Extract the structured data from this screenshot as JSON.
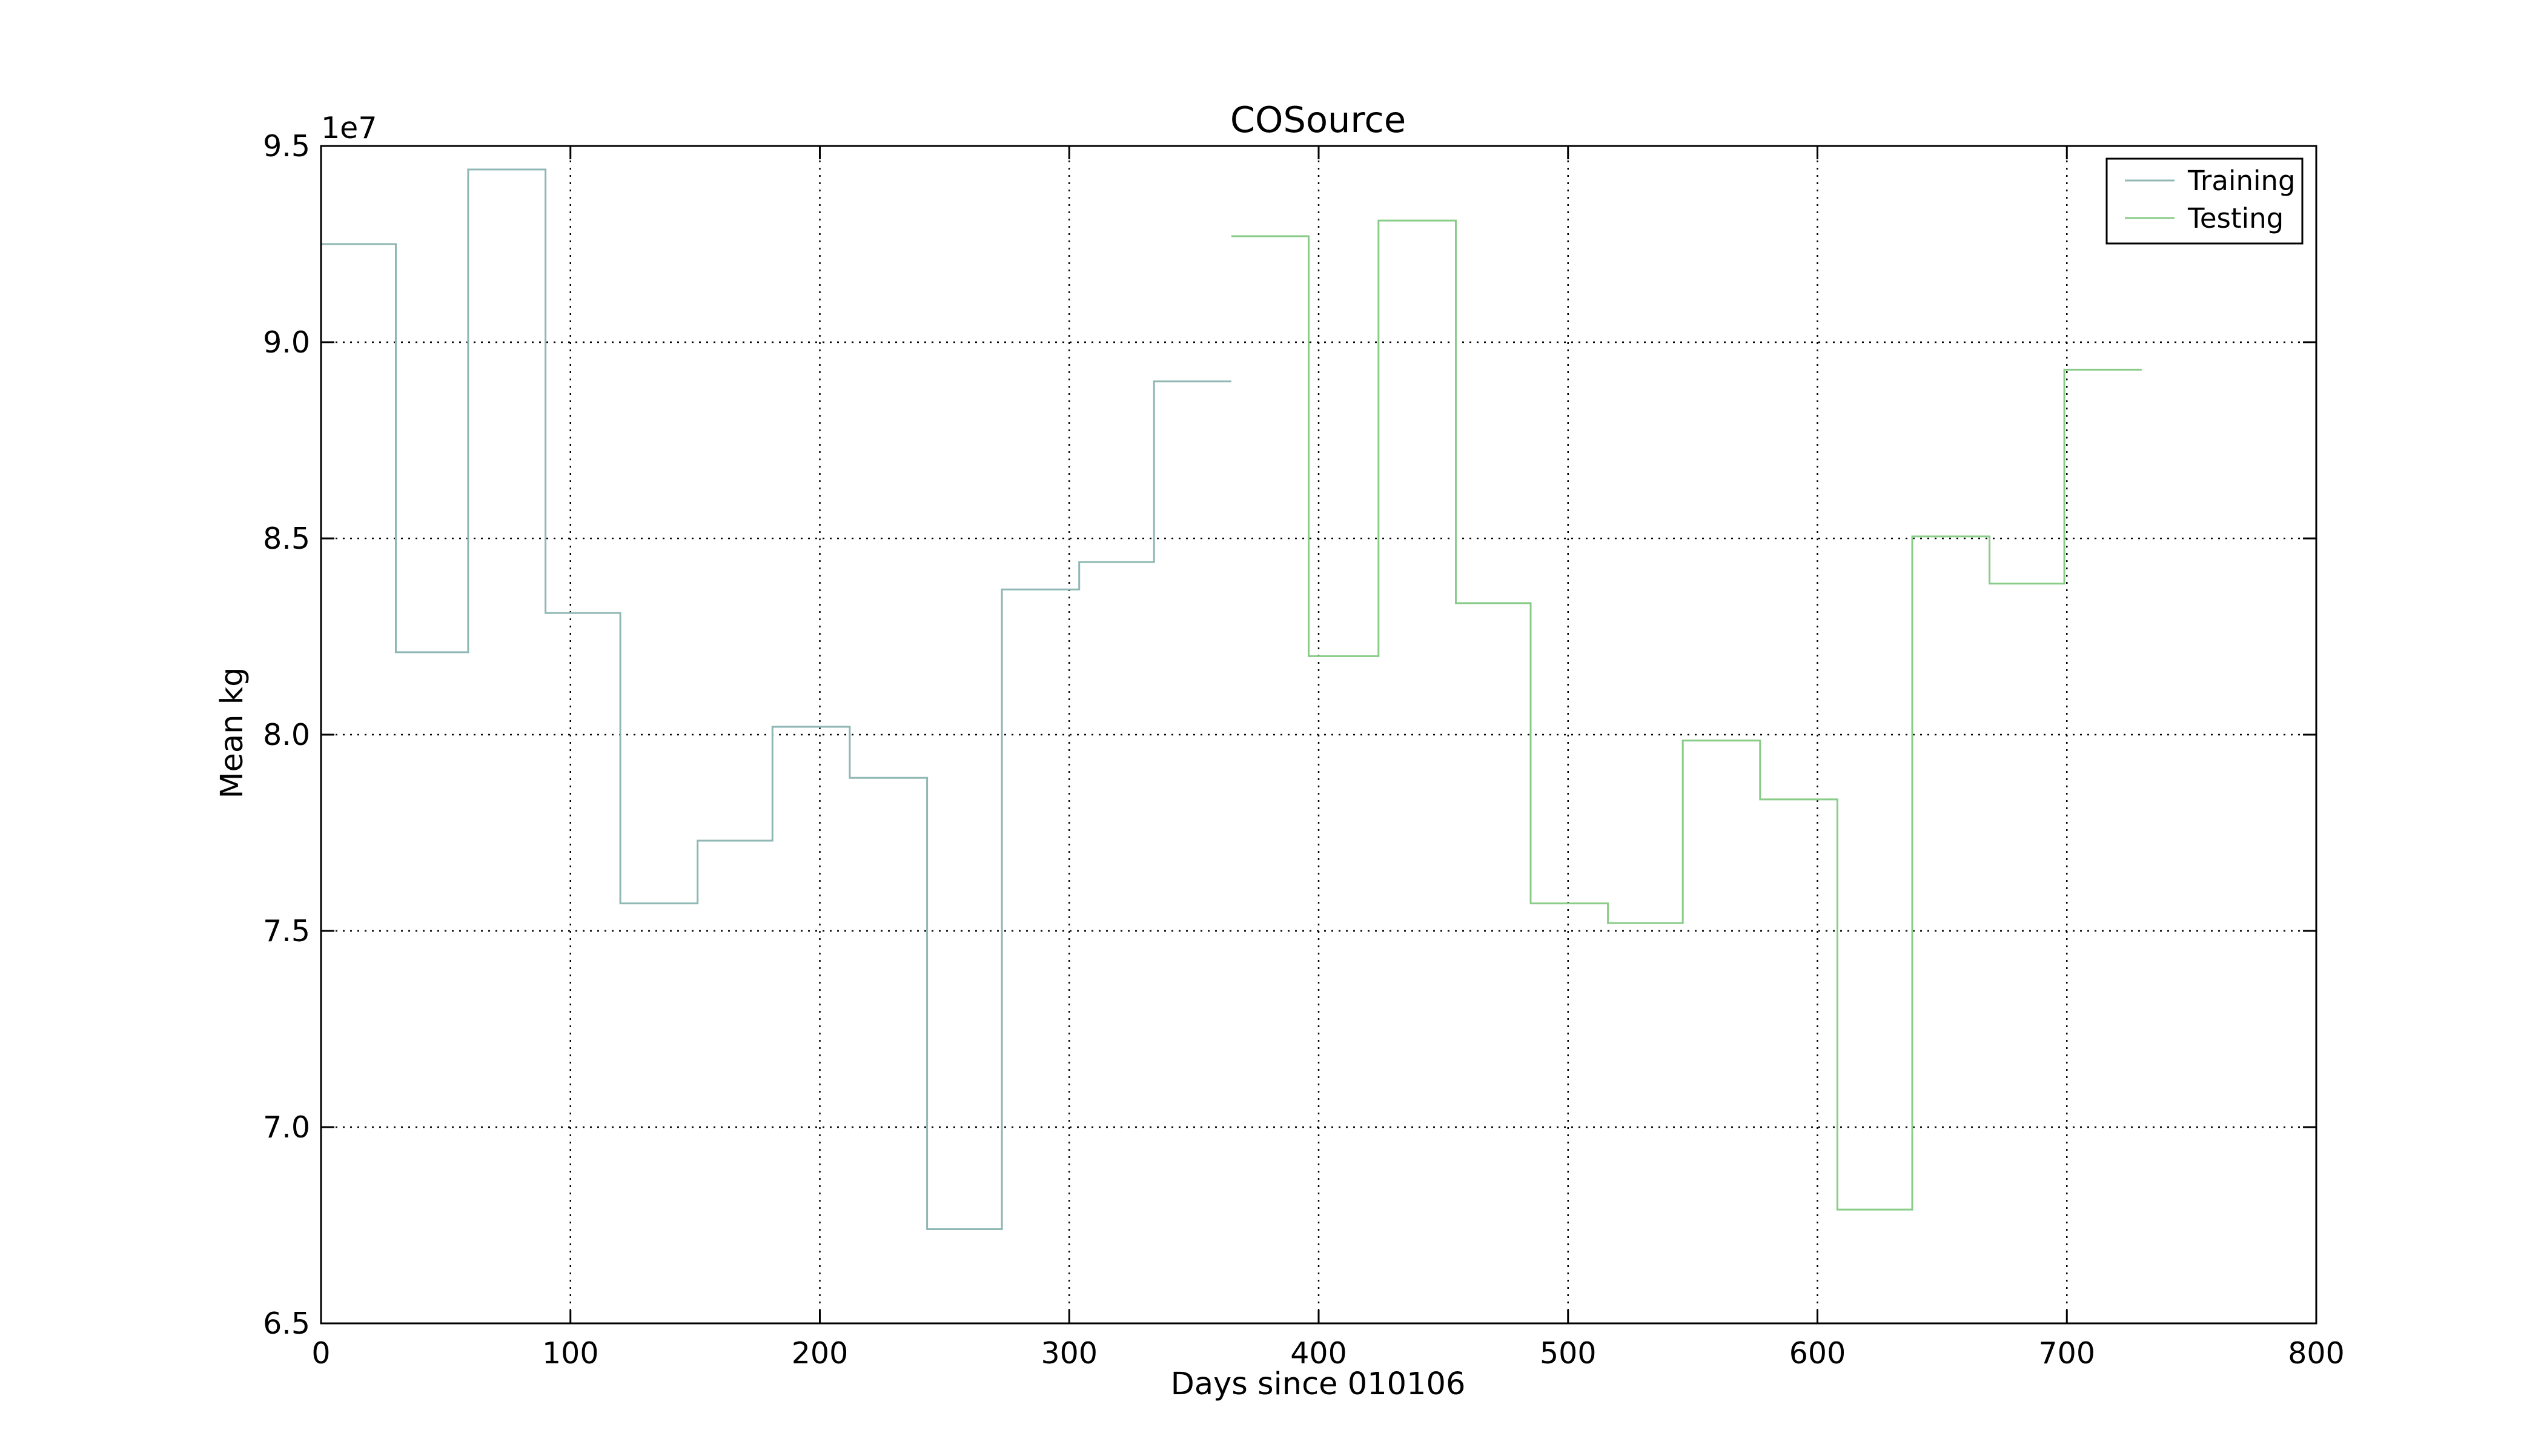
{
  "chart_data": {
    "type": "line",
    "step": true,
    "title": "COSource",
    "xlabel": "Days since 010106",
    "ylabel": "Mean kg",
    "offset_label": "1e7",
    "xlim": [
      0,
      800
    ],
    "ylim": [
      65000000,
      95000000
    ],
    "xticks": [
      0,
      100,
      200,
      300,
      400,
      500,
      600,
      700,
      800
    ],
    "xtick_labels": [
      "0",
      "100",
      "200",
      "300",
      "400",
      "500",
      "600",
      "700",
      "800"
    ],
    "yticks": [
      65000000,
      70000000,
      75000000,
      80000000,
      85000000,
      90000000,
      95000000
    ],
    "ytick_labels": [
      "6.5",
      "7.0",
      "7.5",
      "8.0",
      "8.5",
      "9.0",
      "9.5"
    ],
    "grid": true,
    "legend_position": "top-right",
    "series": [
      {
        "name": "Training",
        "color": "#8fb8b4",
        "points": [
          [
            0,
            92500000
          ],
          [
            30,
            92500000
          ],
          [
            30,
            82100000
          ],
          [
            59,
            82100000
          ],
          [
            59,
            94400000
          ],
          [
            90,
            94400000
          ],
          [
            90,
            83100000
          ],
          [
            120,
            83100000
          ],
          [
            120,
            75700000
          ],
          [
            151,
            75700000
          ],
          [
            151,
            77300000
          ],
          [
            181,
            77300000
          ],
          [
            181,
            80200000
          ],
          [
            212,
            80200000
          ],
          [
            212,
            78900000
          ],
          [
            243,
            78900000
          ],
          [
            243,
            67400000
          ],
          [
            273,
            67400000
          ],
          [
            273,
            83700000
          ],
          [
            304,
            83700000
          ],
          [
            304,
            84400000
          ],
          [
            334,
            84400000
          ],
          [
            334,
            89000000
          ],
          [
            365,
            89000000
          ]
        ]
      },
      {
        "name": "Testing",
        "color": "#88cc88",
        "points": [
          [
            365,
            92700000
          ],
          [
            396,
            92700000
          ],
          [
            396,
            82000000
          ],
          [
            424,
            82000000
          ],
          [
            424,
            93100000
          ],
          [
            455,
            93100000
          ],
          [
            455,
            83350000
          ],
          [
            485,
            83350000
          ],
          [
            485,
            75700000
          ],
          [
            516,
            75700000
          ],
          [
            516,
            75200000
          ],
          [
            546,
            75200000
          ],
          [
            546,
            79850000
          ],
          [
            577,
            79850000
          ],
          [
            577,
            78350000
          ],
          [
            608,
            78350000
          ],
          [
            608,
            67900000
          ],
          [
            638,
            67900000
          ],
          [
            638,
            85050000
          ],
          [
            669,
            85050000
          ],
          [
            669,
            83850000
          ],
          [
            699,
            83850000
          ],
          [
            699,
            89300000
          ],
          [
            730,
            89300000
          ]
        ]
      }
    ]
  }
}
